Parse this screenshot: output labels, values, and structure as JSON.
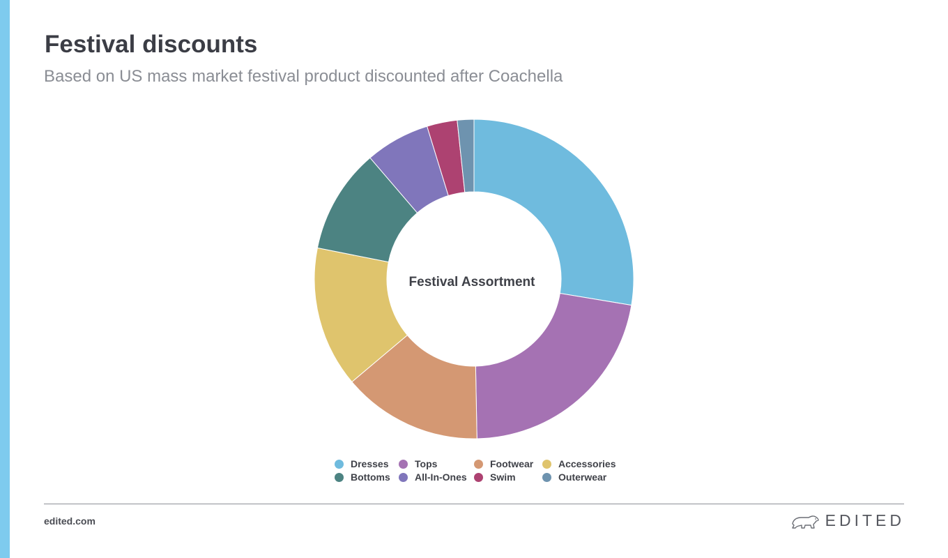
{
  "header": {
    "title": "Festival discounts",
    "subtitle": "Based on US mass market festival product discounted after Coachella"
  },
  "chart_data": {
    "type": "pie",
    "donut": true,
    "center_label": "Festival Assortment",
    "categories": [
      "Dresses",
      "Tops",
      "Footwear",
      "Accessories",
      "Bottoms",
      "All-In-Ones",
      "Swim",
      "Outerwear"
    ],
    "values": [
      27.9,
      22.3,
      14.3,
      14.4,
      10.7,
      6.6,
      3.1,
      1.7
    ],
    "unit": "%",
    "colors": [
      "#6fbbde",
      "#a572b3",
      "#d49873",
      "#dfc46d",
      "#4c8382",
      "#8076bb",
      "#ad4271",
      "#6e93af"
    ],
    "legend_position": "bottom",
    "legend_order": [
      "Dresses",
      "Tops",
      "Footwear",
      "Accessories",
      "Bottoms",
      "All-In-Ones",
      "Swim",
      "Outerwear"
    ]
  },
  "footer": {
    "link": "edited.com",
    "brand": "EDITED",
    "brand_logo": "polar-bear-logo"
  }
}
